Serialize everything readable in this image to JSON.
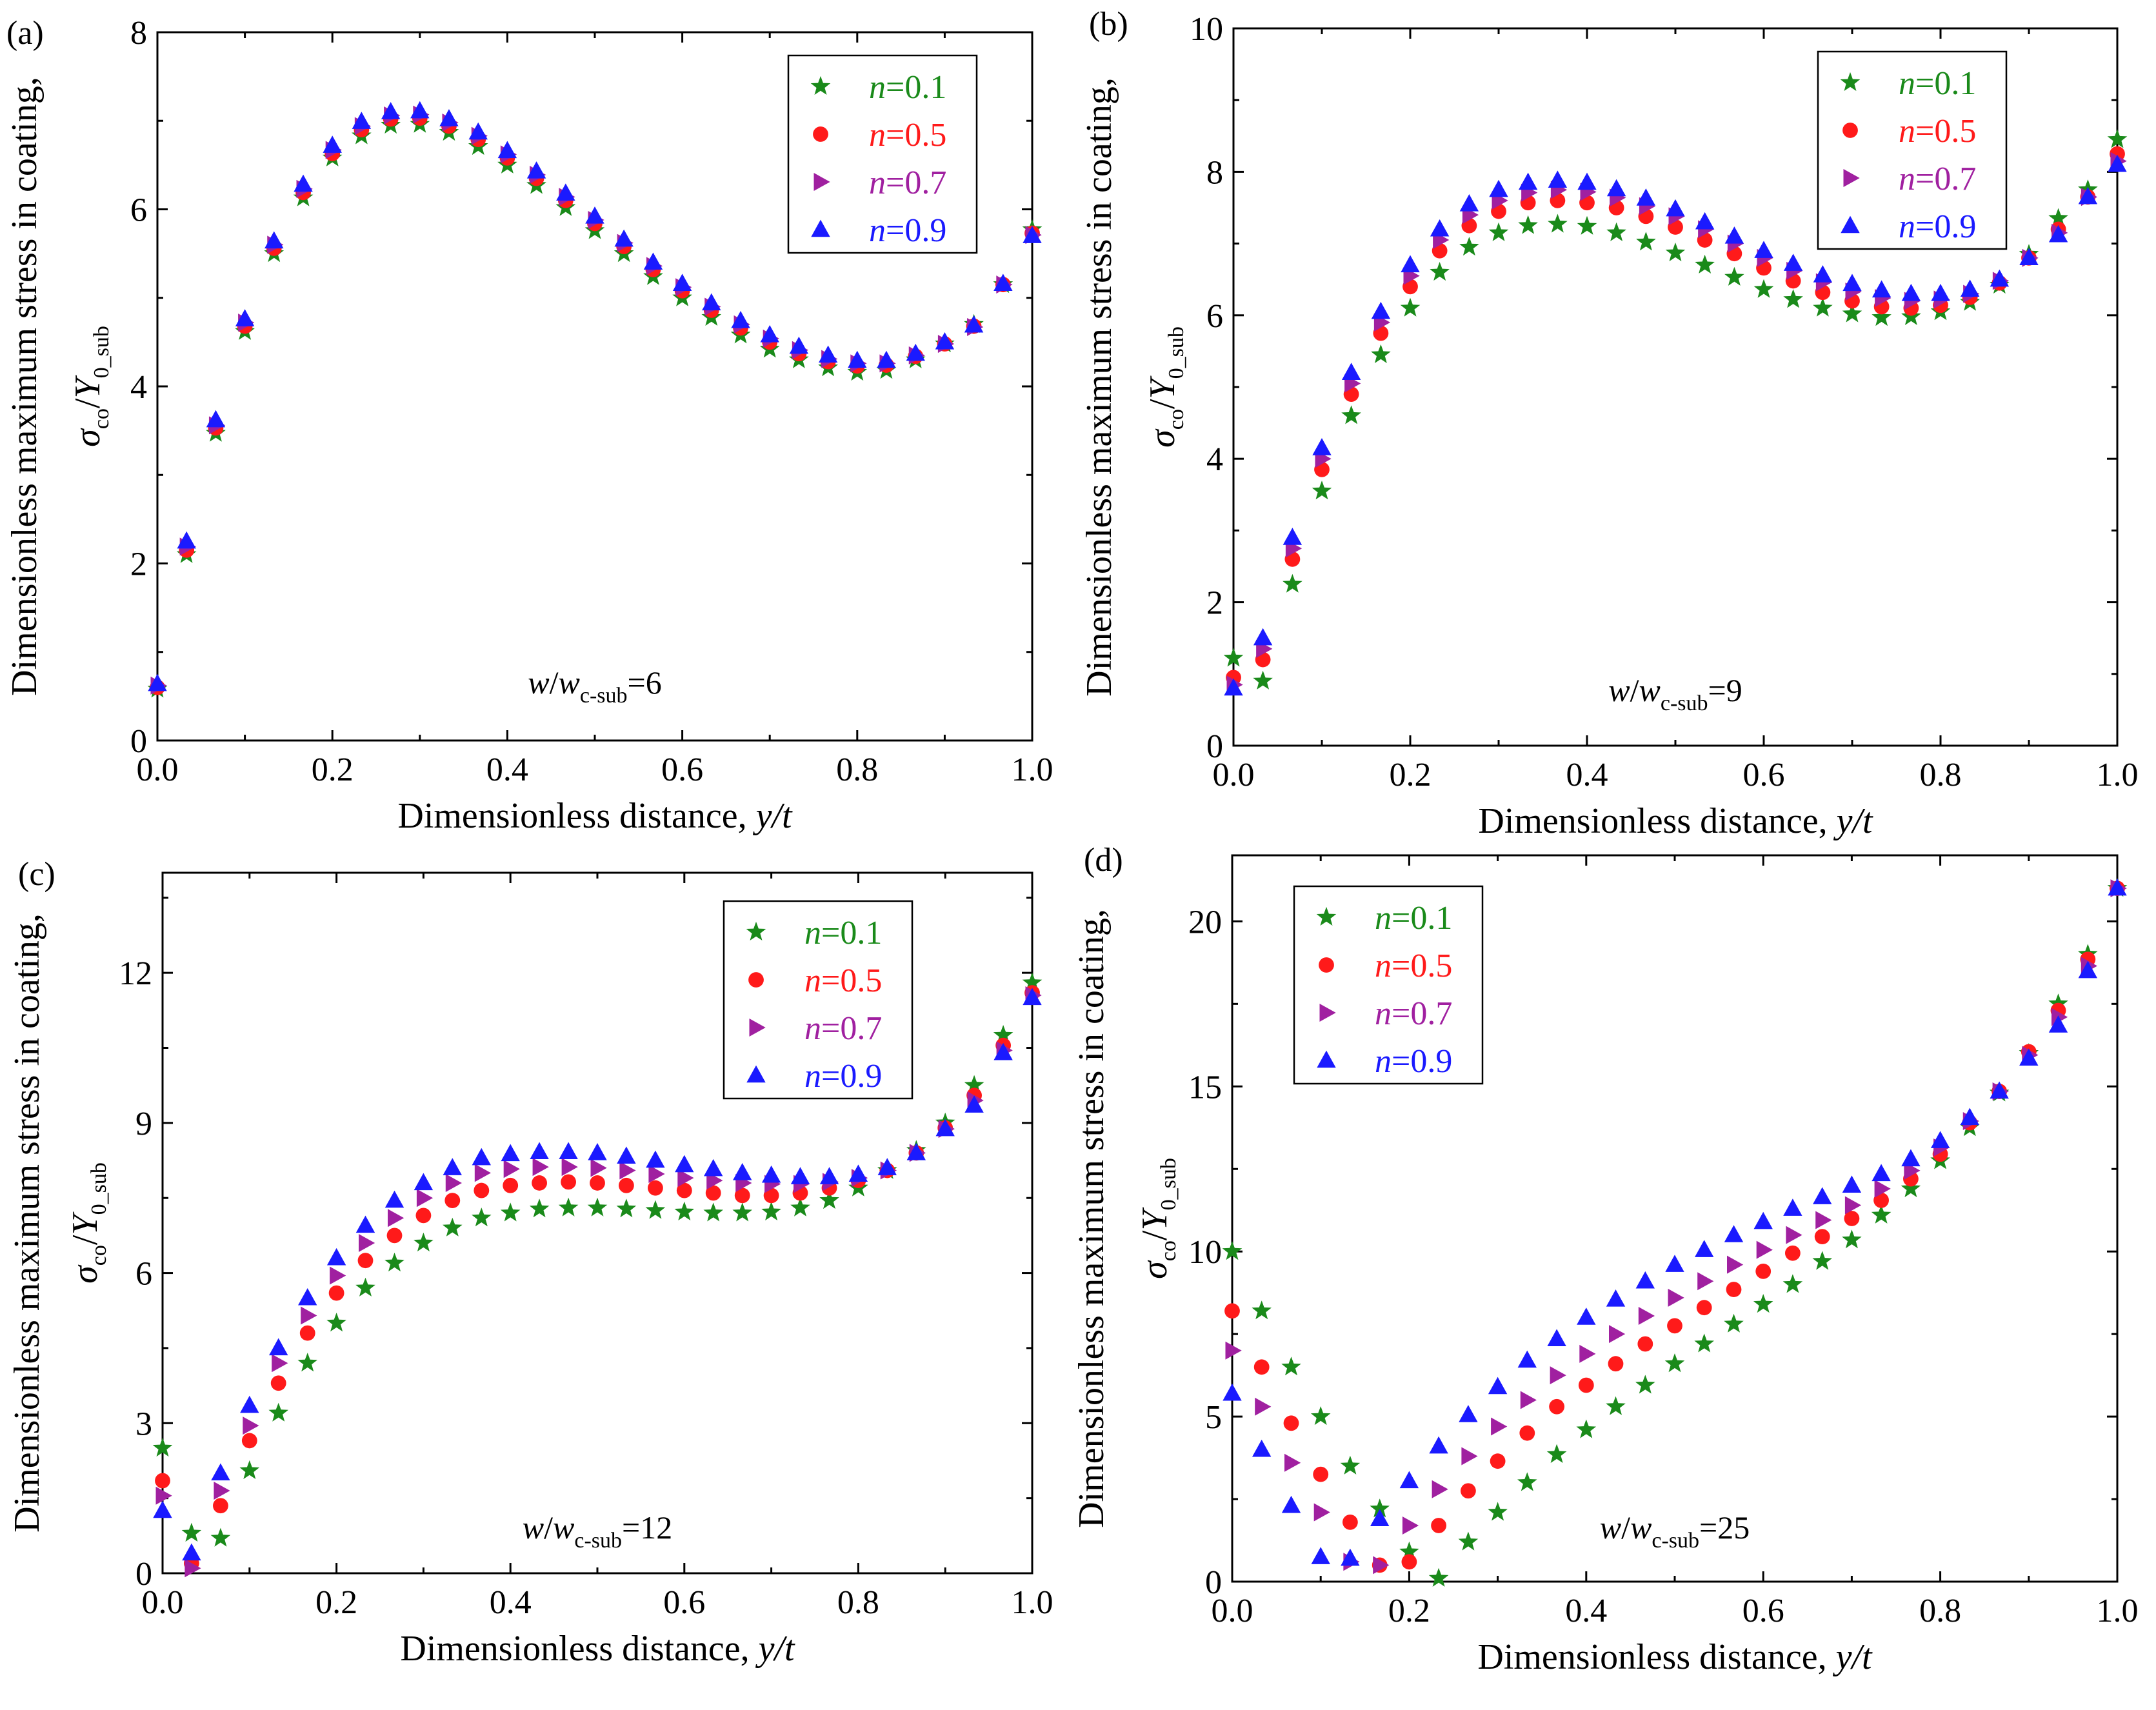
{
  "figure": {
    "xlabel_main": "Dimensionless distance, ",
    "xlabel_var": "y/t",
    "ylabel_main": "Dimensionless maximum stress in coating,",
    "ylabel_sigma": "σ",
    "ylabel_sigma_sub": "co",
    "ylabel_slash": "/",
    "ylabel_Y": "Y",
    "ylabel_Y_sub": "0_sub",
    "annotation_w": "w",
    "annotation_slash": "/",
    "annotation_wc": "w",
    "annotation_wc_sub": "c-sub",
    "annotation_eq": "=",
    "legend_n": "n",
    "legend_eq": "=",
    "colors": {
      "n=0.1": "#1a8a1a",
      "n=0.5": "#ff1a1a",
      "n=0.7": "#a020a0",
      "n=0.9": "#1a1aff"
    }
  },
  "chart_data": [
    {
      "type": "scatter",
      "panel": "(a)",
      "ratio": "6",
      "xlim": [
        0,
        1
      ],
      "ylim": [
        0,
        8
      ],
      "xticks": [
        "0.0",
        "0.2",
        "0.4",
        "0.6",
        "0.8",
        "1.0"
      ],
      "yticks": [
        "0",
        "2",
        "4",
        "6",
        "8"
      ],
      "legend_position": "top-right",
      "x": [
        0,
        0.0333,
        0.0667,
        0.1,
        0.1333,
        0.1667,
        0.2,
        0.2333,
        0.2667,
        0.3,
        0.3333,
        0.3667,
        0.4,
        0.4333,
        0.4667,
        0.5,
        0.5333,
        0.5667,
        0.6,
        0.6333,
        0.6667,
        0.7,
        0.7333,
        0.7667,
        0.8,
        0.8333,
        0.8667,
        0.9,
        0.9333,
        0.9667,
        1.0
      ],
      "series": [
        {
          "name": "0.1",
          "marker": "star",
          "values": [
            0.58,
            2.1,
            3.47,
            4.62,
            5.5,
            6.13,
            6.58,
            6.83,
            6.95,
            6.96,
            6.87,
            6.71,
            6.5,
            6.27,
            6.02,
            5.76,
            5.5,
            5.24,
            5.0,
            4.78,
            4.58,
            4.42,
            4.3,
            4.21,
            4.16,
            4.18,
            4.3,
            4.48,
            4.7,
            5.15,
            5.77
          ]
        },
        {
          "name": "0.5",
          "marker": "circle",
          "values": [
            0.6,
            2.15,
            3.53,
            4.68,
            5.56,
            6.19,
            6.63,
            6.9,
            7.02,
            7.03,
            6.94,
            6.79,
            6.58,
            6.35,
            6.1,
            5.84,
            5.58,
            5.32,
            5.08,
            4.86,
            4.66,
            4.5,
            4.37,
            4.28,
            4.23,
            4.24,
            4.34,
            4.48,
            4.68,
            5.15,
            5.73
          ]
        },
        {
          "name": "0.7",
          "marker": "triangle-right",
          "values": [
            0.62,
            2.19,
            3.56,
            4.72,
            5.6,
            6.23,
            6.67,
            6.94,
            7.06,
            7.07,
            6.98,
            6.83,
            6.62,
            6.39,
            6.14,
            5.88,
            5.62,
            5.36,
            5.12,
            4.9,
            4.7,
            4.54,
            4.41,
            4.31,
            4.26,
            4.26,
            4.35,
            4.48,
            4.67,
            5.15,
            5.71
          ]
        },
        {
          "name": "0.9",
          "marker": "triangle-up",
          "values": [
            0.64,
            2.25,
            3.62,
            4.76,
            5.64,
            6.28,
            6.72,
            6.99,
            7.1,
            7.11,
            7.02,
            6.87,
            6.66,
            6.43,
            6.18,
            5.92,
            5.66,
            5.4,
            5.16,
            4.94,
            4.74,
            4.58,
            4.45,
            4.35,
            4.29,
            4.29,
            4.37,
            4.5,
            4.69,
            5.16,
            5.7
          ]
        }
      ]
    },
    {
      "type": "scatter",
      "panel": "(b)",
      "ratio": "9",
      "xlim": [
        0,
        1
      ],
      "ylim": [
        0,
        10
      ],
      "xticks": [
        "0.0",
        "0.2",
        "0.4",
        "0.6",
        "0.8",
        "1.0"
      ],
      "yticks": [
        "0",
        "2",
        "4",
        "6",
        "8",
        "10"
      ],
      "legend_position": "top-right",
      "x": [
        0,
        0.0333,
        0.0667,
        0.1,
        0.1333,
        0.1667,
        0.2,
        0.2333,
        0.2667,
        0.3,
        0.3333,
        0.3667,
        0.4,
        0.4333,
        0.4667,
        0.5,
        0.5333,
        0.5667,
        0.6,
        0.6333,
        0.6667,
        0.7,
        0.7333,
        0.7667,
        0.8,
        0.8333,
        0.8667,
        0.9,
        0.9333,
        0.9667,
        1.0
      ],
      "series": [
        {
          "name": "0.1",
          "marker": "star",
          "values": [
            1.22,
            0.9,
            2.25,
            3.55,
            4.6,
            5.45,
            6.1,
            6.6,
            6.95,
            7.15,
            7.25,
            7.27,
            7.24,
            7.15,
            7.02,
            6.87,
            6.7,
            6.53,
            6.36,
            6.22,
            6.1,
            6.02,
            5.97,
            5.98,
            6.05,
            6.18,
            6.42,
            6.85,
            7.35,
            7.75,
            8.45
          ]
        },
        {
          "name": "0.5",
          "marker": "circle",
          "values": [
            0.95,
            1.2,
            2.6,
            3.85,
            4.9,
            5.75,
            6.4,
            6.9,
            7.25,
            7.45,
            7.57,
            7.6,
            7.57,
            7.5,
            7.38,
            7.23,
            7.05,
            6.86,
            6.66,
            6.48,
            6.32,
            6.2,
            6.12,
            6.1,
            6.14,
            6.25,
            6.45,
            6.8,
            7.2,
            7.65,
            8.25
          ]
        },
        {
          "name": "0.7",
          "marker": "triangle-right",
          "values": [
            0.85,
            1.35,
            2.75,
            4.0,
            5.05,
            5.9,
            6.55,
            7.05,
            7.4,
            7.6,
            7.71,
            7.75,
            7.72,
            7.64,
            7.52,
            7.38,
            7.2,
            7.0,
            6.8,
            6.62,
            6.46,
            6.33,
            6.24,
            6.2,
            6.22,
            6.3,
            6.48,
            6.8,
            7.15,
            7.65,
            8.15
          ]
        },
        {
          "name": "0.9",
          "marker": "triangle-up",
          "values": [
            0.8,
            1.5,
            2.9,
            4.15,
            5.2,
            6.05,
            6.7,
            7.2,
            7.55,
            7.75,
            7.85,
            7.88,
            7.85,
            7.76,
            7.63,
            7.48,
            7.3,
            7.1,
            6.9,
            6.72,
            6.56,
            6.44,
            6.35,
            6.3,
            6.3,
            6.36,
            6.5,
            6.8,
            7.12,
            7.65,
            8.1
          ]
        }
      ]
    },
    {
      "type": "scatter",
      "panel": "(c)",
      "ratio": "12",
      "xlim": [
        0,
        1
      ],
      "ylim": [
        0,
        14
      ],
      "xticks": [
        "0.0",
        "0.2",
        "0.4",
        "0.6",
        "0.8",
        "1.0"
      ],
      "yticks": [
        "0",
        "3",
        "6",
        "9",
        "12"
      ],
      "legend_position": "top-right",
      "x": [
        0,
        0.0333,
        0.0667,
        0.1,
        0.1333,
        0.1667,
        0.2,
        0.2333,
        0.2667,
        0.3,
        0.3333,
        0.3667,
        0.4,
        0.4333,
        0.4667,
        0.5,
        0.5333,
        0.5667,
        0.6,
        0.6333,
        0.6667,
        0.7,
        0.7333,
        0.7667,
        0.8,
        0.8333,
        0.8667,
        0.9,
        0.9333,
        0.9667,
        1.0
      ],
      "series": [
        {
          "name": "0.1",
          "marker": "star",
          "values": [
            2.5,
            0.8,
            0.7,
            2.05,
            3.2,
            4.2,
            5.0,
            5.7,
            6.2,
            6.6,
            6.9,
            7.1,
            7.2,
            7.28,
            7.3,
            7.3,
            7.28,
            7.25,
            7.22,
            7.2,
            7.2,
            7.22,
            7.3,
            7.45,
            7.7,
            8.05,
            8.45,
            9.0,
            9.75,
            10.75,
            11.8
          ]
        },
        {
          "name": "0.5",
          "marker": "circle",
          "values": [
            1.85,
            0.2,
            1.35,
            2.65,
            3.8,
            4.8,
            5.6,
            6.25,
            6.75,
            7.15,
            7.45,
            7.65,
            7.75,
            7.8,
            7.82,
            7.8,
            7.75,
            7.7,
            7.65,
            7.6,
            7.55,
            7.55,
            7.6,
            7.7,
            7.85,
            8.05,
            8.4,
            8.9,
            9.55,
            10.55,
            11.6
          ]
        },
        {
          "name": "0.7",
          "marker": "triangle-right",
          "values": [
            1.55,
            0.1,
            1.65,
            2.95,
            4.2,
            5.15,
            5.95,
            6.6,
            7.1,
            7.5,
            7.8,
            8.0,
            8.08,
            8.12,
            8.12,
            8.1,
            8.05,
            7.98,
            7.9,
            7.85,
            7.8,
            7.78,
            7.78,
            7.82,
            7.9,
            8.05,
            8.4,
            8.88,
            9.45,
            10.45,
            11.55
          ]
        },
        {
          "name": "0.9",
          "marker": "triangle-up",
          "values": [
            1.25,
            0.4,
            2.0,
            3.35,
            4.5,
            5.5,
            6.3,
            6.95,
            7.45,
            7.8,
            8.1,
            8.3,
            8.38,
            8.42,
            8.42,
            8.4,
            8.33,
            8.25,
            8.16,
            8.08,
            8.0,
            7.95,
            7.92,
            7.92,
            7.97,
            8.1,
            8.4,
            8.88,
            9.35,
            10.4,
            11.5
          ]
        }
      ]
    },
    {
      "type": "scatter",
      "panel": "(d)",
      "ratio": "25",
      "xlim": [
        0,
        1
      ],
      "ylim": [
        0,
        22
      ],
      "xticks": [
        "0.0",
        "0.2",
        "0.4",
        "0.6",
        "0.8",
        "1.0"
      ],
      "yticks": [
        "0",
        "5",
        "10",
        "15",
        "20"
      ],
      "legend_position": "top-left",
      "x": [
        0,
        0.0333,
        0.0667,
        0.1,
        0.1333,
        0.1667,
        0.2,
        0.2333,
        0.2667,
        0.3,
        0.3333,
        0.3667,
        0.4,
        0.4333,
        0.4667,
        0.5,
        0.5333,
        0.5667,
        0.6,
        0.6333,
        0.6667,
        0.7,
        0.7333,
        0.7667,
        0.8,
        0.8333,
        0.8667,
        0.9,
        0.9333,
        0.9667,
        1.0
      ],
      "series": [
        {
          "name": "0.1",
          "marker": "star",
          "values": [
            10.0,
            8.2,
            6.5,
            5.0,
            3.5,
            2.2,
            0.9,
            0.1,
            1.2,
            2.1,
            3.0,
            3.85,
            4.6,
            5.3,
            5.95,
            6.6,
            7.2,
            7.8,
            8.4,
            9.0,
            9.7,
            10.35,
            11.1,
            11.9,
            12.75,
            13.75,
            14.8,
            16.0,
            17.5,
            19.0,
            21.0
          ]
        },
        {
          "name": "0.5",
          "marker": "circle",
          "values": [
            8.2,
            6.5,
            4.8,
            3.25,
            1.8,
            0.5,
            0.6,
            1.7,
            2.75,
            3.65,
            4.5,
            5.3,
            5.95,
            6.6,
            7.2,
            7.75,
            8.3,
            8.85,
            9.4,
            9.95,
            10.45,
            11.0,
            11.55,
            12.2,
            12.95,
            13.9,
            14.85,
            16.05,
            17.3,
            18.85,
            21.0
          ]
        },
        {
          "name": "0.7",
          "marker": "triangle-right",
          "values": [
            7.0,
            5.3,
            3.6,
            2.1,
            0.6,
            0.5,
            1.7,
            2.8,
            3.8,
            4.7,
            5.5,
            6.25,
            6.9,
            7.5,
            8.05,
            8.6,
            9.1,
            9.6,
            10.05,
            10.5,
            10.95,
            11.4,
            11.9,
            12.45,
            13.15,
            13.95,
            14.85,
            15.95,
            17.1,
            18.65,
            21.0
          ]
        },
        {
          "name": "0.9",
          "marker": "triangle-up",
          "values": [
            5.7,
            4.0,
            2.3,
            0.75,
            0.7,
            1.9,
            3.05,
            4.1,
            5.05,
            5.9,
            6.7,
            7.35,
            8.0,
            8.55,
            9.1,
            9.6,
            10.05,
            10.5,
            10.9,
            11.3,
            11.65,
            12.0,
            12.35,
            12.8,
            13.35,
            14.05,
            14.85,
            15.85,
            16.85,
            18.5,
            21.0
          ]
        }
      ]
    }
  ]
}
